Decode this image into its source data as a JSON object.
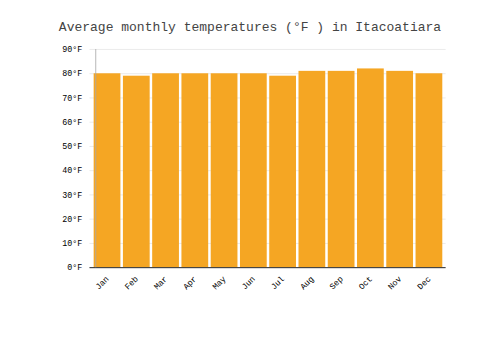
{
  "chart_data": {
    "type": "bar",
    "title": "Average monthly temperatures (°F ) in Itacoatiara",
    "categories": [
      "Jan",
      "Feb",
      "Mar",
      "Apr",
      "May",
      "Jun",
      "Jul",
      "Aug",
      "Sep",
      "Oct",
      "Nov",
      "Dec"
    ],
    "values": [
      80,
      79,
      80,
      80,
      80,
      80,
      79,
      81,
      81,
      82,
      81,
      80
    ],
    "color": "#F5A623",
    "ylim": [
      0,
      90
    ],
    "yticks": [
      {
        "value": 0,
        "label": "0°F"
      },
      {
        "value": 10,
        "label": "10°F"
      },
      {
        "value": 20,
        "label": "20°F"
      },
      {
        "value": 30,
        "label": "30°F"
      },
      {
        "value": 40,
        "label": "40°F"
      },
      {
        "value": 50,
        "label": "50°F"
      },
      {
        "value": 60,
        "label": "60°F"
      },
      {
        "value": 70,
        "label": "70°F"
      },
      {
        "value": 80,
        "label": "80°F"
      },
      {
        "value": 90,
        "label": "90°F"
      }
    ],
    "grid": true
  }
}
